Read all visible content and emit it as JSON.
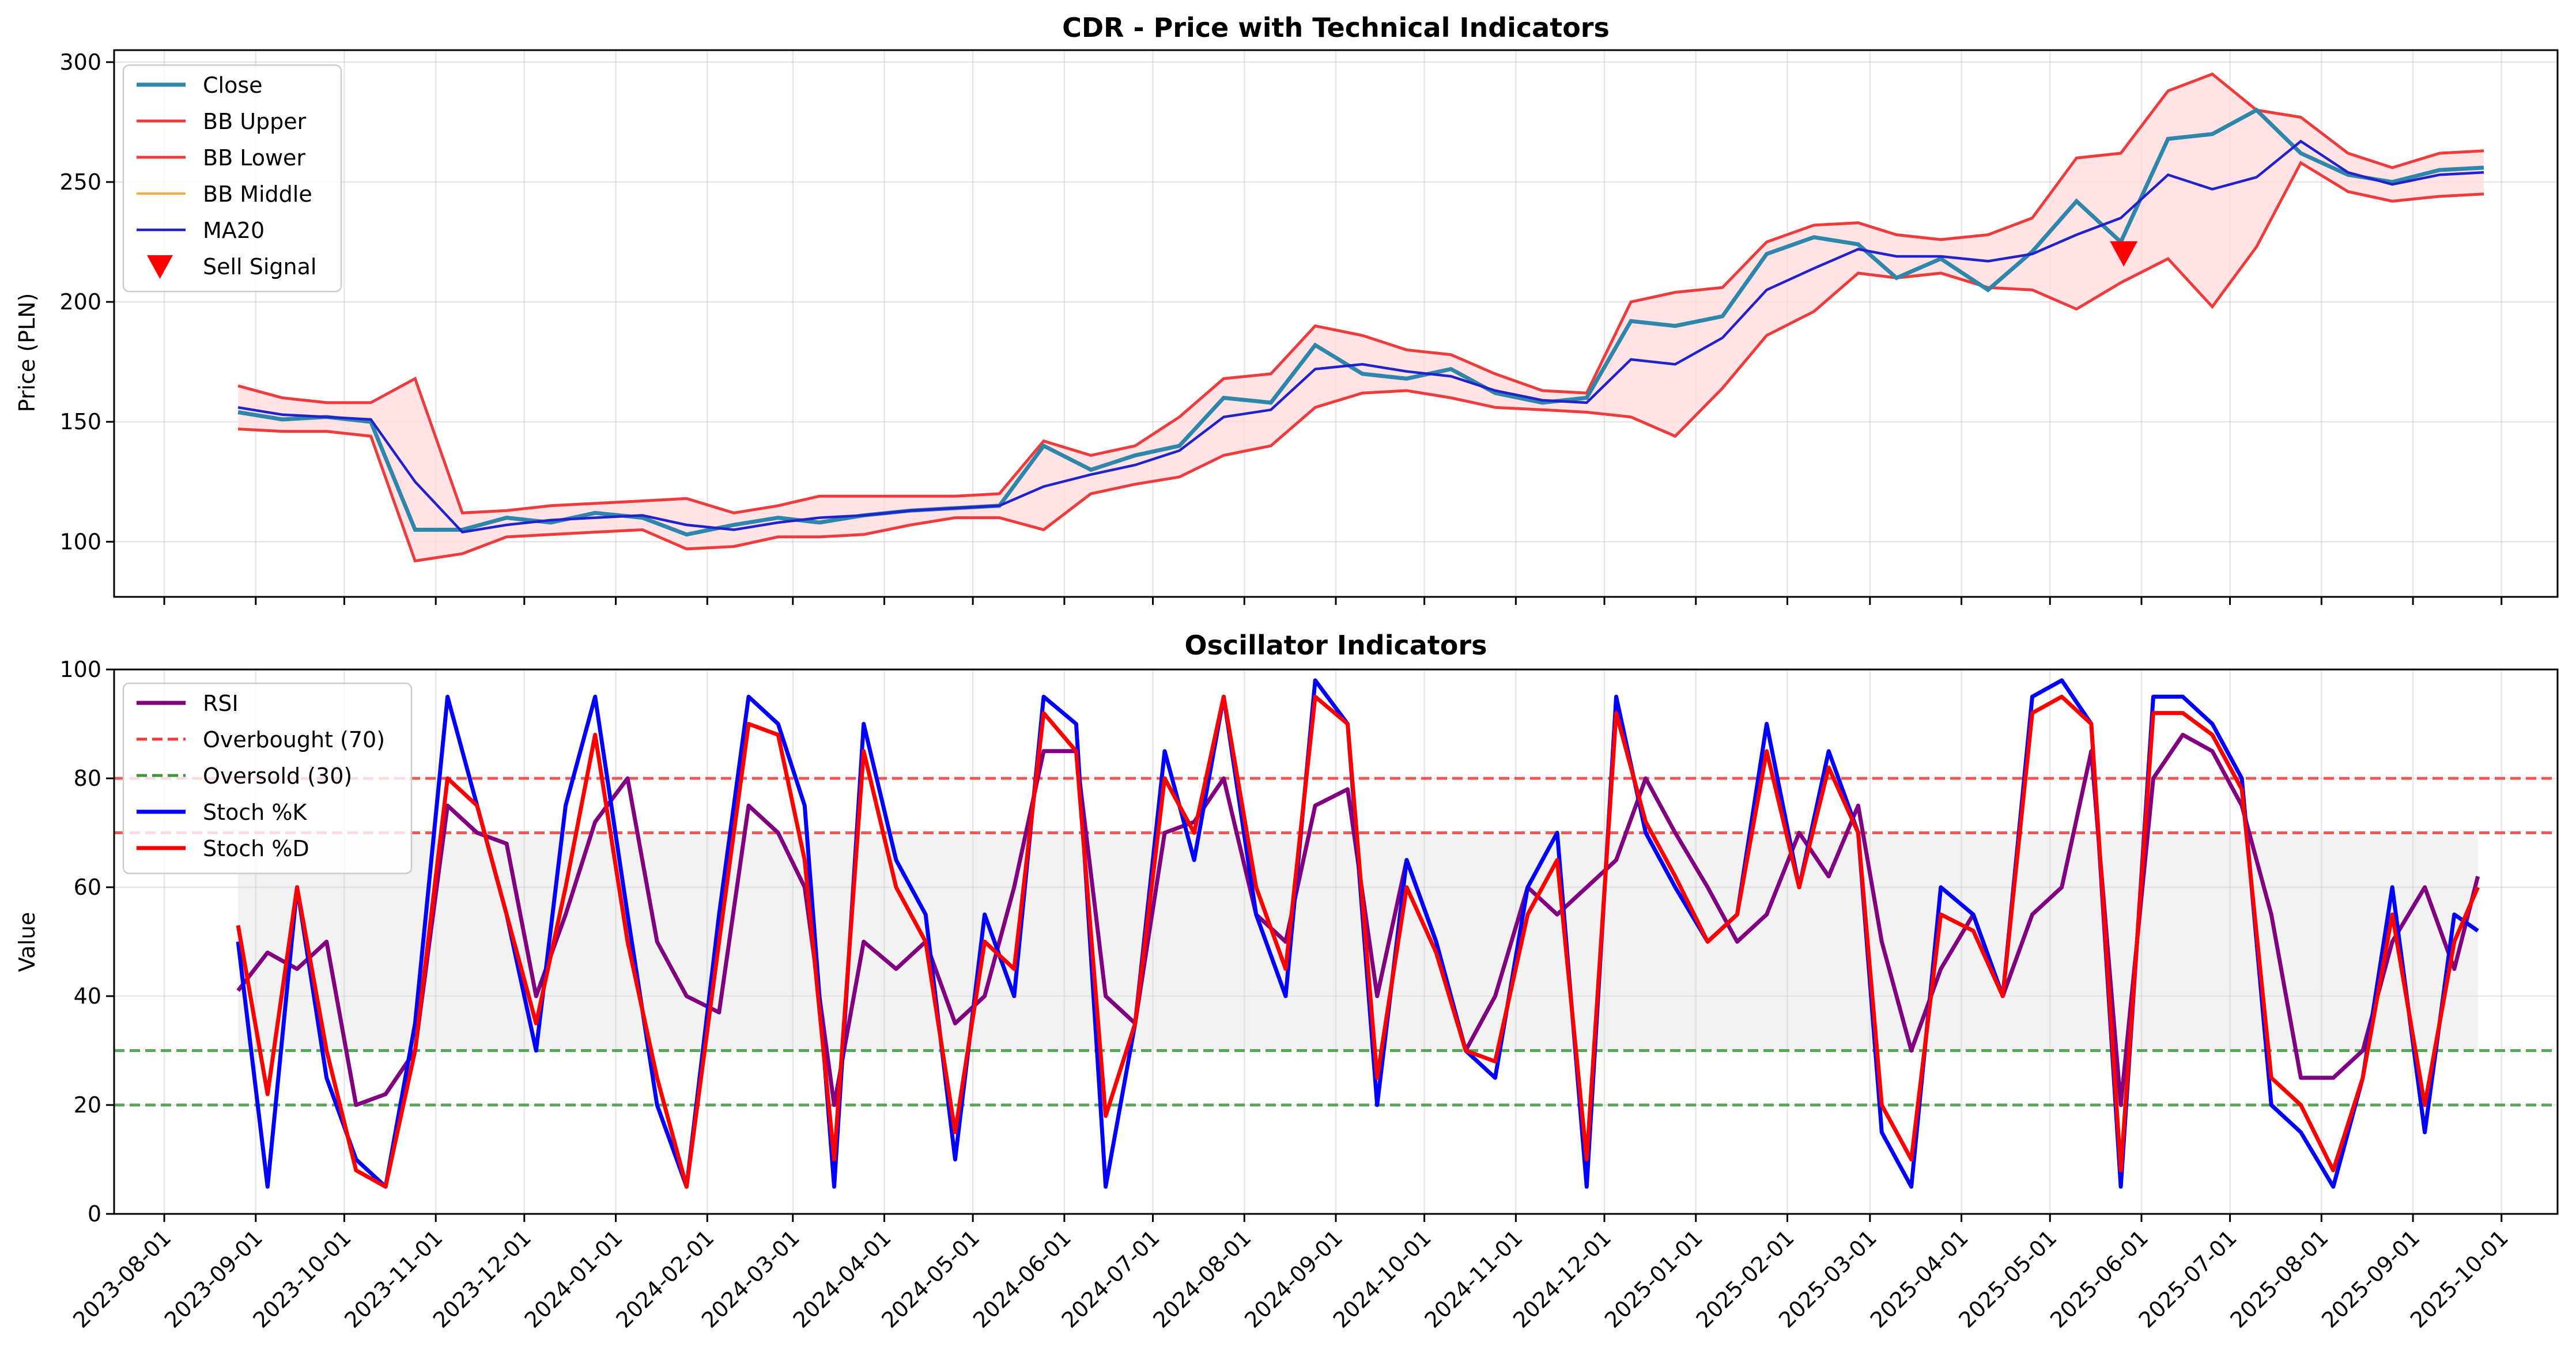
{
  "chart_data": [
    {
      "type": "line",
      "title": "CDR - Price with Technical Indicators",
      "xlabel": "",
      "ylabel": "Price (PLN)",
      "ylim": [
        77,
        305
      ],
      "yticks": [
        100,
        150,
        200,
        250,
        300
      ],
      "xlim": [
        "2023-07-15",
        "2025-10-20"
      ],
      "grid": true,
      "legend": "top-left",
      "legend_entries": [
        "Close",
        "BB Upper",
        "BB Lower",
        "BB Middle",
        "MA20",
        "Sell Signal"
      ],
      "colors": {
        "close": "#2e86ab",
        "bb": "#ee3b3b",
        "bb_fill": "#ffd9dc",
        "bb_middle": "#f5b041",
        "ma20": "#2222cc",
        "sell": "#ff0000"
      },
      "dates": [
        "2023-08-26",
        "2023-09-10",
        "2023-09-25",
        "2023-10-10",
        "2023-10-25",
        "2023-11-10",
        "2023-11-25",
        "2023-12-10",
        "2023-12-25",
        "2024-01-10",
        "2024-01-25",
        "2024-02-10",
        "2024-02-25",
        "2024-03-10",
        "2024-03-25",
        "2024-04-10",
        "2024-04-25",
        "2024-05-10",
        "2024-05-25",
        "2024-06-10",
        "2024-06-25",
        "2024-07-10",
        "2024-07-25",
        "2024-08-10",
        "2024-08-25",
        "2024-09-10",
        "2024-09-25",
        "2024-10-10",
        "2024-10-25",
        "2024-11-10",
        "2024-11-25",
        "2024-12-10",
        "2024-12-25",
        "2025-01-10",
        "2025-01-25",
        "2025-02-10",
        "2025-02-25",
        "2025-03-10",
        "2025-03-25",
        "2025-04-10",
        "2025-04-25",
        "2025-05-10",
        "2025-05-25",
        "2025-06-10",
        "2025-06-25",
        "2025-07-10",
        "2025-07-25",
        "2025-08-10",
        "2025-08-25",
        "2025-09-10",
        "2025-09-25"
      ],
      "series": [
        {
          "name": "Close",
          "values": [
            154,
            151,
            152,
            150,
            105,
            105,
            110,
            108,
            112,
            110,
            103,
            107,
            110,
            108,
            111,
            113,
            114,
            115,
            140,
            130,
            136,
            140,
            160,
            158,
            182,
            170,
            168,
            172,
            162,
            158,
            160,
            192,
            190,
            194,
            220,
            227,
            224,
            210,
            218,
            205,
            221,
            242,
            225,
            268,
            270,
            280,
            262,
            253,
            250,
            255,
            256
          ]
        },
        {
          "name": "BB Upper",
          "values": [
            165,
            160,
            158,
            158,
            168,
            112,
            113,
            115,
            116,
            117,
            118,
            112,
            115,
            119,
            119,
            119,
            119,
            120,
            142,
            136,
            140,
            152,
            168,
            170,
            190,
            186,
            180,
            178,
            170,
            163,
            162,
            200,
            204,
            206,
            225,
            232,
            233,
            228,
            226,
            228,
            235,
            260,
            262,
            288,
            295,
            280,
            277,
            262,
            256,
            262,
            263
          ]
        },
        {
          "name": "BB Lower",
          "values": [
            147,
            146,
            146,
            144,
            92,
            95,
            102,
            103,
            104,
            105,
            97,
            98,
            102,
            102,
            103,
            107,
            110,
            110,
            105,
            120,
            124,
            127,
            136,
            140,
            156,
            162,
            163,
            160,
            156,
            155,
            154,
            152,
            144,
            164,
            186,
            196,
            212,
            210,
            212,
            206,
            205,
            197,
            208,
            218,
            198,
            223,
            258,
            246,
            242,
            244,
            245
          ]
        },
        {
          "name": "BB Middle",
          "values": [
            156,
            153,
            152,
            151,
            125,
            104,
            107,
            109,
            110,
            111,
            107,
            105,
            108,
            110,
            111,
            113,
            114,
            115,
            123,
            128,
            132,
            138,
            152,
            155,
            172,
            174,
            171,
            169,
            163,
            159,
            158,
            176,
            174,
            185,
            205,
            214,
            222,
            219,
            219,
            217,
            220,
            228,
            235,
            253,
            247,
            252,
            267,
            254,
            249,
            253,
            254
          ]
        },
        {
          "name": "MA20",
          "values": [
            156,
            153,
            152,
            151,
            125,
            104,
            107,
            109,
            110,
            111,
            107,
            105,
            108,
            110,
            111,
            113,
            114,
            115,
            123,
            128,
            132,
            138,
            152,
            155,
            172,
            174,
            171,
            169,
            163,
            159,
            158,
            176,
            174,
            185,
            205,
            214,
            222,
            219,
            219,
            217,
            220,
            228,
            235,
            253,
            247,
            252,
            267,
            254,
            249,
            253,
            254
          ]
        }
      ],
      "markers": [
        {
          "name": "Sell Signal",
          "x": "2025-05-26",
          "y": 220
        }
      ]
    },
    {
      "type": "line",
      "title": "Oscillator Indicators",
      "xlabel": "",
      "ylabel": "Value",
      "ylim": [
        0,
        100
      ],
      "yticks": [
        0,
        20,
        40,
        60,
        80,
        100
      ],
      "xlim": [
        "2023-07-15",
        "2025-10-20"
      ],
      "grid": true,
      "legend": "top-left",
      "legend_entries": [
        "RSI",
        "Overbought (70)",
        "Oversold (30)",
        "Stoch %K",
        "Stoch %D"
      ],
      "xticks": [
        "2023-08-01",
        "2023-09-01",
        "2023-10-01",
        "2023-11-01",
        "2023-12-01",
        "2024-01-01",
        "2024-02-01",
        "2024-03-01",
        "2024-04-01",
        "2024-05-01",
        "2024-06-01",
        "2024-07-01",
        "2024-08-01",
        "2024-09-01",
        "2024-10-01",
        "2024-11-01",
        "2024-12-01",
        "2025-01-01",
        "2025-02-01",
        "2025-03-01",
        "2025-04-01",
        "2025-05-01",
        "2025-06-01",
        "2025-07-01",
        "2025-08-01",
        "2025-09-01",
        "2025-10-01"
      ],
      "hlines": [
        {
          "name": "Overbought (70)",
          "y": 70,
          "color": "#ee3b3b"
        },
        {
          "name": "Oversold (30)",
          "y": 30,
          "color": "#3a9a3a"
        },
        {
          "y": 80,
          "color": "#ee3b3b"
        },
        {
          "y": 20,
          "color": "#3a9a3a"
        }
      ],
      "band": {
        "from": "2023-08-26",
        "to": "2025-09-23",
        "ymin": 30,
        "ymax": 70,
        "color": "#d9d9d9"
      },
      "colors": {
        "rsi": "#800080",
        "stoch_k": "#0000ff",
        "stoch_d": "#ff0000"
      },
      "dates": [
        "2023-08-26",
        "2023-09-05",
        "2023-09-15",
        "2023-09-25",
        "2023-10-05",
        "2023-10-15",
        "2023-10-25",
        "2023-11-05",
        "2023-11-15",
        "2023-11-25",
        "2023-12-05",
        "2023-12-15",
        "2023-12-25",
        "2024-01-05",
        "2024-01-15",
        "2024-01-25",
        "2024-02-05",
        "2024-02-15",
        "2024-02-25",
        "2024-03-05",
        "2024-03-15",
        "2024-03-25",
        "2024-04-05",
        "2024-04-15",
        "2024-04-25",
        "2024-05-05",
        "2024-05-15",
        "2024-05-25",
        "2024-06-05",
        "2024-06-15",
        "2024-06-25",
        "2024-07-05",
        "2024-07-15",
        "2024-07-25",
        "2024-08-05",
        "2024-08-15",
        "2024-08-25",
        "2024-09-05",
        "2024-09-15",
        "2024-09-25",
        "2024-10-05",
        "2024-10-15",
        "2024-10-25",
        "2024-11-05",
        "2024-11-15",
        "2024-11-25",
        "2024-12-05",
        "2024-12-15",
        "2024-12-25",
        "2025-01-05",
        "2025-01-15",
        "2025-01-25",
        "2025-02-05",
        "2025-02-15",
        "2025-02-25",
        "2025-03-05",
        "2025-03-15",
        "2025-03-25",
        "2025-04-05",
        "2025-04-15",
        "2025-04-25",
        "2025-05-05",
        "2025-05-15",
        "2025-05-25",
        "2025-06-05",
        "2025-06-15",
        "2025-06-25",
        "2025-07-05",
        "2025-07-15",
        "2025-07-25",
        "2025-08-05",
        "2025-08-15",
        "2025-08-25",
        "2025-09-05",
        "2025-09-15",
        "2025-09-23"
      ],
      "series": [
        {
          "name": "RSI",
          "values": [
            41,
            48,
            45,
            50,
            20,
            22,
            30,
            75,
            70,
            68,
            40,
            55,
            72,
            80,
            50,
            40,
            37,
            75,
            70,
            60,
            20,
            50,
            45,
            50,
            35,
            40,
            60,
            85,
            85,
            40,
            35,
            70,
            72,
            80,
            55,
            50,
            75,
            78,
            40,
            65,
            50,
            30,
            40,
            60,
            55,
            60,
            65,
            80,
            70,
            60,
            50,
            55,
            70,
            62,
            75,
            50,
            30,
            45,
            55,
            40,
            55,
            60,
            85,
            20,
            80,
            88,
            85,
            75,
            55,
            25,
            25,
            30,
            50,
            60,
            45,
            62
          ]
        },
        {
          "name": "Stoch %K",
          "values": [
            50,
            5,
            60,
            25,
            10,
            5,
            35,
            95,
            75,
            55,
            30,
            75,
            95,
            55,
            20,
            5,
            55,
            95,
            90,
            75,
            5,
            90,
            65,
            55,
            10,
            55,
            40,
            95,
            90,
            5,
            35,
            85,
            65,
            95,
            55,
            40,
            98,
            90,
            20,
            65,
            50,
            30,
            25,
            60,
            70,
            5,
            95,
            70,
            60,
            50,
            55,
            90,
            60,
            85,
            70,
            15,
            5,
            60,
            55,
            40,
            95,
            98,
            90,
            5,
            95,
            95,
            90,
            80,
            20,
            15,
            5,
            25,
            60,
            15,
            55,
            52
          ]
        },
        {
          "name": "Stoch %D",
          "values": [
            53,
            22,
            60,
            30,
            8,
            5,
            30,
            80,
            75,
            55,
            35,
            60,
            88,
            50,
            25,
            5,
            50,
            90,
            88,
            65,
            10,
            85,
            60,
            50,
            15,
            50,
            45,
            92,
            85,
            18,
            35,
            80,
            70,
            95,
            60,
            45,
            95,
            90,
            25,
            60,
            48,
            30,
            28,
            55,
            65,
            10,
            92,
            72,
            62,
            50,
            55,
            85,
            60,
            82,
            70,
            20,
            10,
            55,
            52,
            40,
            92,
            95,
            90,
            8,
            92,
            92,
            88,
            78,
            25,
            20,
            8,
            25,
            55,
            20,
            50,
            60
          ]
        }
      ]
    }
  ]
}
